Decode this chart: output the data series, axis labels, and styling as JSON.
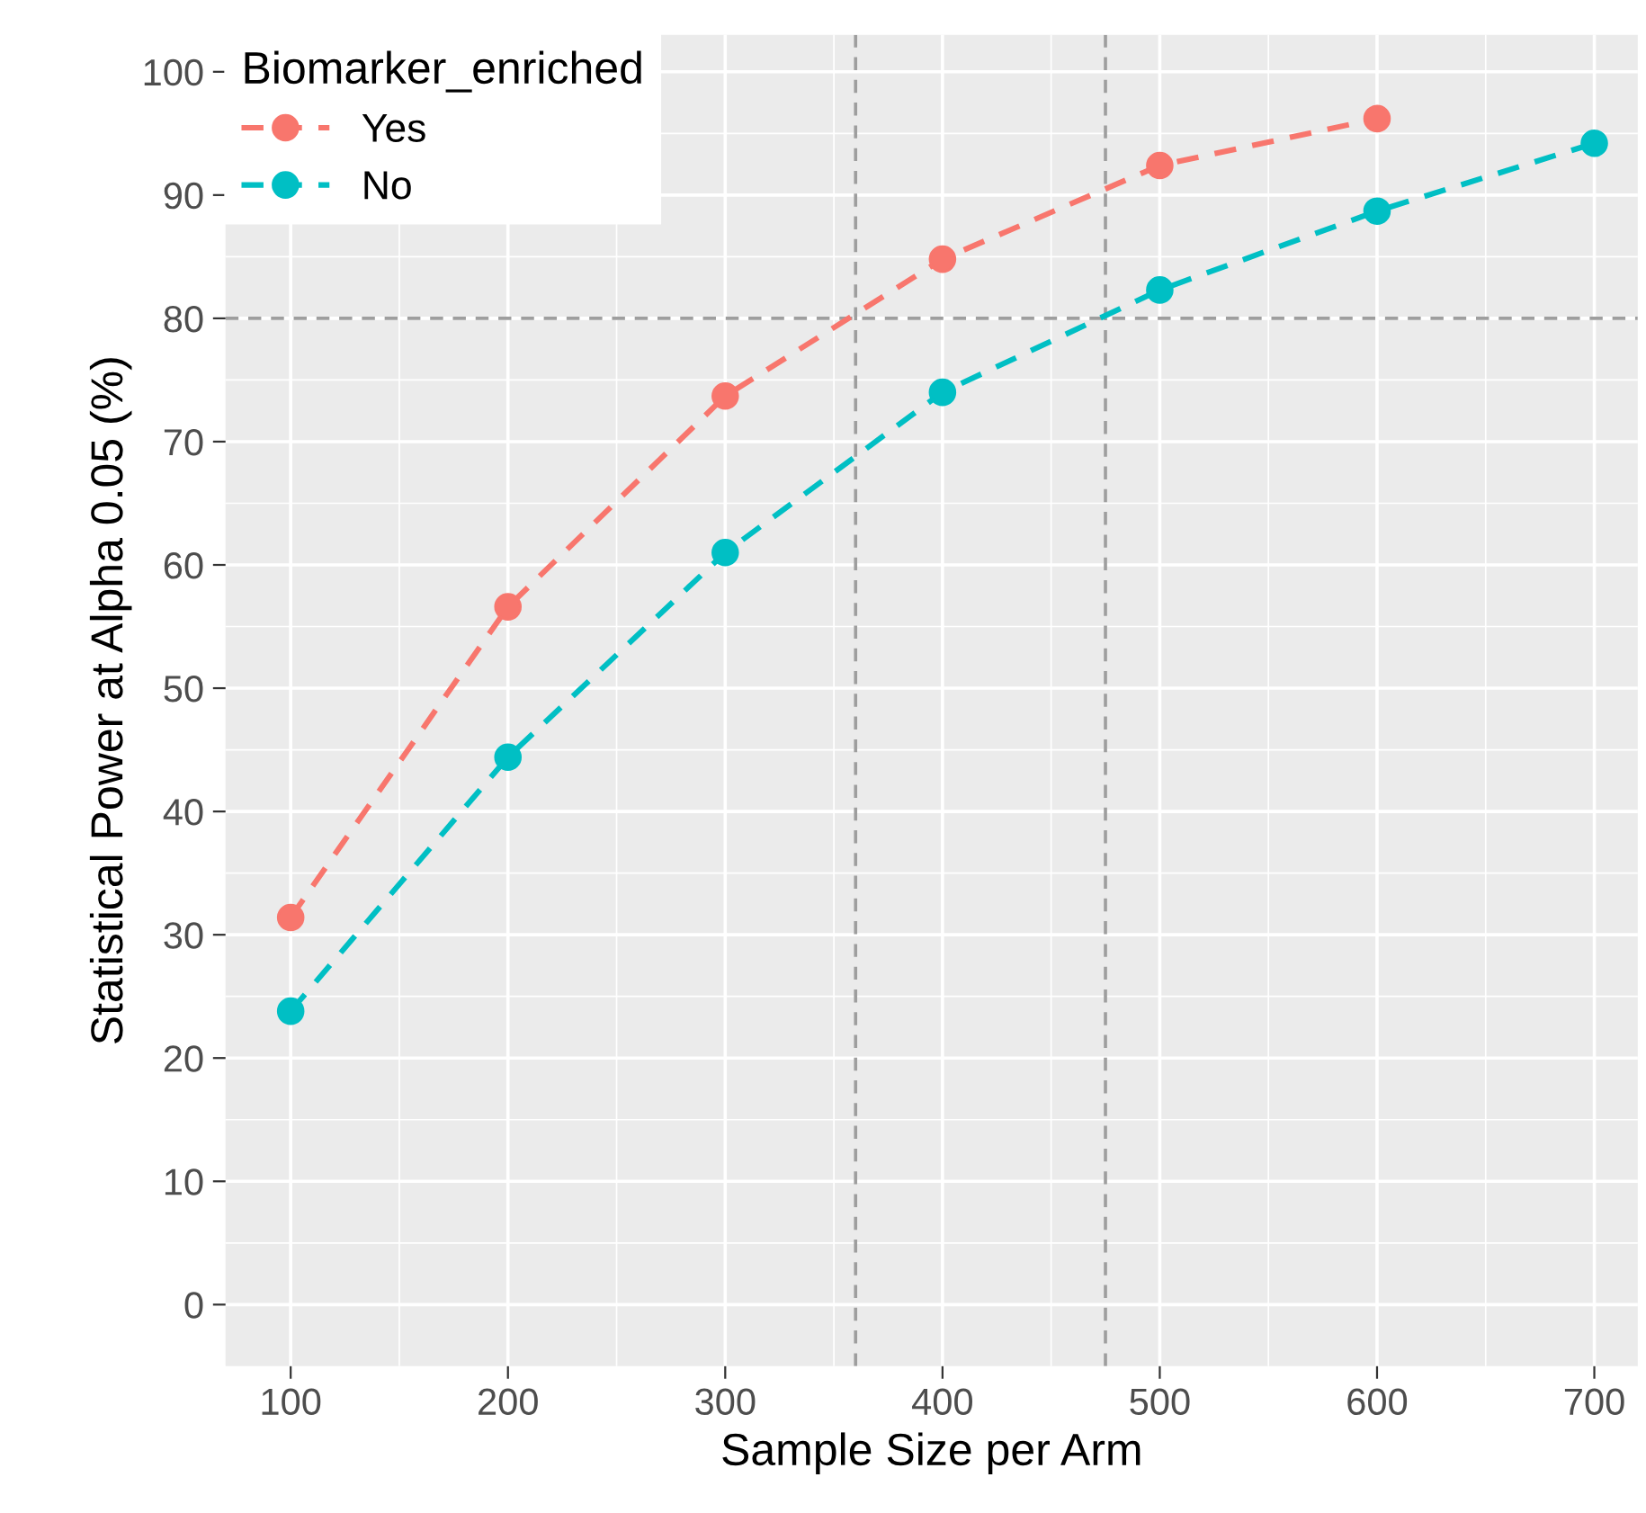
{
  "chart_data": {
    "type": "line",
    "xlabel": "Sample Size per Arm",
    "ylabel": "Statistical Power at Alpha 0.05 (%)",
    "legend_title": "Biomarker_enriched",
    "series": [
      {
        "name": "Yes",
        "color": "#f8766d",
        "x": [
          100,
          200,
          300,
          400,
          500,
          600
        ],
        "values": [
          31.4,
          56.6,
          73.7,
          84.8,
          92.4,
          96.2
        ]
      },
      {
        "name": "No",
        "color": "#00bfc4",
        "x": [
          100,
          200,
          300,
          400,
          500,
          600,
          700
        ],
        "values": [
          23.8,
          44.4,
          61.0,
          74.0,
          82.3,
          88.7,
          94.2
        ]
      }
    ],
    "xlim": [
      70,
      720
    ],
    "ylim": [
      -5,
      103
    ],
    "xticks": [
      100,
      200,
      300,
      400,
      500,
      600,
      700
    ],
    "yticks": [
      0,
      10,
      20,
      30,
      40,
      50,
      60,
      70,
      80,
      90,
      100
    ],
    "ref_lines": [
      {
        "axis": "y",
        "value": 80
      },
      {
        "axis": "x",
        "value": 360
      },
      {
        "axis": "x",
        "value": 475
      }
    ],
    "grid": true,
    "legend": "top left",
    "marker": "circle",
    "line_style": "dashed"
  }
}
